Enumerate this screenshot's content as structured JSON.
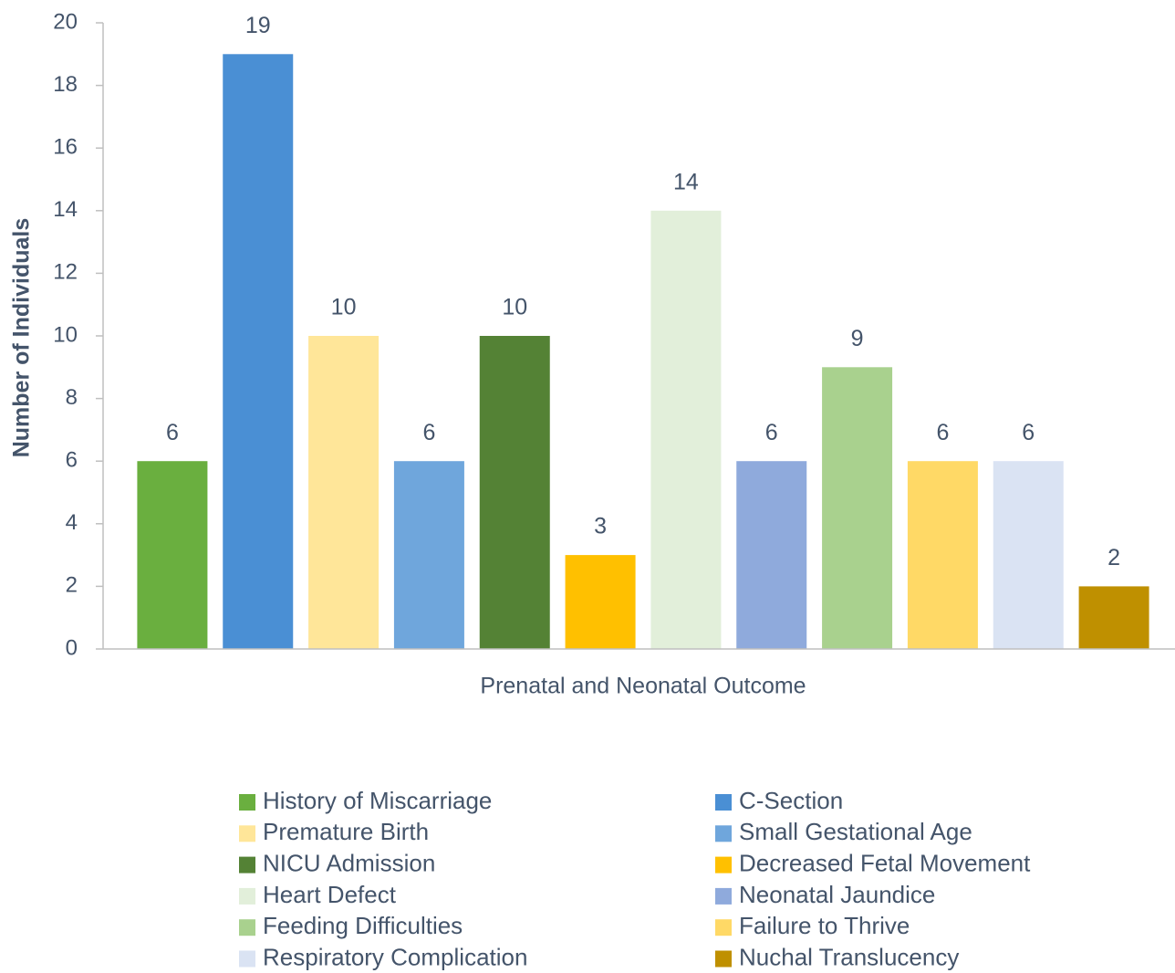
{
  "chart_data": {
    "type": "bar",
    "x_label": "Prenatal and Neonatal Outcome",
    "y_label": "Number of Individuals",
    "categories": [
      "History of Miscarriage",
      "C-Section",
      "Premature Birth",
      "Small Gestational Age",
      "NICU Admission",
      "Decreased Fetal Movement",
      "Heart Defect",
      "Neonatal Jaundice",
      "Feeding Difficulties",
      "Failure to Thrive",
      "Respiratory Complication",
      "Nuchal Translucency"
    ],
    "values": [
      6,
      19,
      10,
      6,
      10,
      3,
      14,
      6,
      9,
      6,
      6,
      2
    ],
    "colors": [
      "#6aaf3f",
      "#4a8fd4",
      "#ffe699",
      "#6fa6dc",
      "#548235",
      "#ffc000",
      "#e2efda",
      "#8faadc",
      "#a9d18e",
      "#ffd966",
      "#dae3f3",
      "#bf9000"
    ],
    "ylim": [
      0,
      20
    ],
    "yticks": [
      0,
      2,
      4,
      6,
      8,
      10,
      12,
      14,
      16,
      18,
      20
    ],
    "legend_position": "bottom"
  }
}
